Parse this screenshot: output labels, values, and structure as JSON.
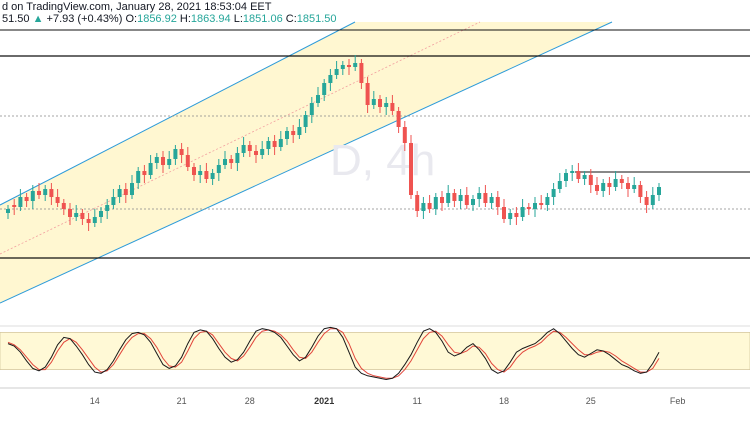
{
  "header": {
    "publish_text": "d on TradingView.com, January 28, 2021 18:53:04 EET",
    "ohlc_prefix": "51.50",
    "change": "+7.93 (+0.43%)",
    "open_label": "O:",
    "open": "1856.92",
    "high_label": "H:",
    "high": "1863.94",
    "low_label": "L:",
    "low": "1851.06",
    "close_label": "C:",
    "close": "1851.50"
  },
  "watermark": "D, 4h",
  "colors": {
    "up": "#26a69a",
    "down": "#ef5350",
    "channel_line": "#2d9bd9",
    "channel_fill": "#fff6cc",
    "stoch_k": "#1a1a1a",
    "stoch_d": "#e2463b",
    "stoch_band": "#fff9d6"
  },
  "x_axis": {
    "ticks": [
      {
        "label": "14",
        "idx": 14,
        "bold": false
      },
      {
        "label": "21",
        "idx": 28,
        "bold": false
      },
      {
        "label": "28",
        "idx": 39,
        "bold": false
      },
      {
        "label": "2021",
        "idx": 51,
        "bold": true
      },
      {
        "label": "11",
        "idx": 66,
        "bold": false
      },
      {
        "label": "18",
        "idx": 80,
        "bold": false
      },
      {
        "label": "25",
        "idx": 94,
        "bold": false
      },
      {
        "label": "Feb",
        "idx": 108,
        "bold": false
      }
    ]
  },
  "chart_data": {
    "type": "candlestick",
    "candles": [
      [
        1,
        3
      ],
      [
        5,
        4
      ],
      [
        4,
        9
      ],
      [
        9,
        7
      ],
      [
        7,
        12
      ],
      [
        12,
        10
      ],
      [
        10,
        13
      ],
      [
        13,
        9
      ],
      [
        9,
        6
      ],
      [
        6,
        3
      ],
      [
        3,
        -1
      ],
      [
        -1,
        1
      ],
      [
        1,
        -2
      ],
      [
        -2,
        -4
      ],
      [
        -4,
        -1
      ],
      [
        -1,
        2
      ],
      [
        2,
        5
      ],
      [
        5,
        9
      ],
      [
        9,
        13
      ],
      [
        13,
        10
      ],
      [
        10,
        16
      ],
      [
        16,
        22
      ],
      [
        22,
        20
      ],
      [
        20,
        26
      ],
      [
        26,
        29
      ],
      [
        29,
        25
      ],
      [
        25,
        28
      ],
      [
        28,
        33
      ],
      [
        33,
        30
      ],
      [
        30,
        24
      ],
      [
        24,
        20
      ],
      [
        20,
        22
      ],
      [
        22,
        18
      ],
      [
        18,
        21
      ],
      [
        21,
        25
      ],
      [
        25,
        28
      ],
      [
        28,
        26
      ],
      [
        26,
        31
      ],
      [
        31,
        35
      ],
      [
        35,
        32
      ],
      [
        32,
        30
      ],
      [
        30,
        33
      ],
      [
        33,
        37
      ],
      [
        37,
        34
      ],
      [
        34,
        38
      ],
      [
        38,
        42
      ],
      [
        42,
        40
      ],
      [
        40,
        44
      ],
      [
        44,
        50
      ],
      [
        50,
        56
      ],
      [
        56,
        60
      ],
      [
        60,
        66
      ],
      [
        66,
        70
      ],
      [
        70,
        73
      ],
      [
        73,
        75
      ],
      [
        75,
        74
      ],
      [
        74,
        76
      ],
      [
        76,
        66
      ],
      [
        66,
        55
      ],
      [
        55,
        58
      ],
      [
        58,
        54
      ],
      [
        54,
        56
      ],
      [
        56,
        52
      ],
      [
        52,
        44
      ],
      [
        44,
        36
      ],
      [
        36,
        10
      ],
      [
        10,
        2
      ],
      [
        2,
        6
      ],
      [
        6,
        3
      ],
      [
        3,
        9
      ],
      [
        9,
        6
      ],
      [
        6,
        11
      ],
      [
        11,
        7
      ],
      [
        7,
        10
      ],
      [
        10,
        5
      ],
      [
        5,
        8
      ],
      [
        8,
        11
      ],
      [
        11,
        6
      ],
      [
        6,
        9
      ],
      [
        9,
        4
      ],
      [
        4,
        -2
      ],
      [
        -2,
        1
      ],
      [
        1,
        -1
      ],
      [
        -1,
        4
      ],
      [
        4,
        3
      ],
      [
        3,
        6
      ],
      [
        6,
        5
      ],
      [
        5,
        9
      ],
      [
        9,
        13
      ],
      [
        13,
        17
      ],
      [
        17,
        21
      ],
      [
        21,
        22
      ],
      [
        22,
        18
      ],
      [
        18,
        20
      ],
      [
        20,
        15
      ],
      [
        15,
        12
      ],
      [
        12,
        16
      ],
      [
        16,
        14
      ],
      [
        14,
        18
      ],
      [
        18,
        16
      ],
      [
        16,
        13
      ],
      [
        13,
        15
      ],
      [
        15,
        9
      ],
      [
        9,
        5
      ],
      [
        5,
        10
      ],
      [
        10,
        14
      ]
    ],
    "stoch_k": [
      62,
      58,
      48,
      34,
      22,
      18,
      24,
      40,
      60,
      72,
      70,
      58,
      44,
      28,
      16,
      14,
      20,
      34,
      52,
      68,
      78,
      80,
      76,
      64,
      46,
      28,
      22,
      26,
      40,
      62,
      80,
      84,
      82,
      70,
      54,
      40,
      32,
      36,
      48,
      66,
      82,
      86,
      84,
      80,
      72,
      58,
      44,
      34,
      40,
      56,
      74,
      86,
      88,
      86,
      72,
      48,
      24,
      14,
      10,
      8,
      6,
      4,
      6,
      14,
      28,
      44,
      64,
      82,
      86,
      80,
      66,
      48,
      42,
      46,
      56,
      62,
      52,
      38,
      20,
      14,
      18,
      32,
      48,
      54,
      58,
      62,
      70,
      80,
      86,
      78,
      66,
      54,
      44,
      40,
      46,
      52,
      50,
      44,
      36,
      28,
      24,
      18,
      14,
      16,
      30,
      48
    ],
    "stoch_d": [
      64,
      60,
      52,
      40,
      28,
      20,
      20,
      32,
      50,
      64,
      70,
      64,
      52,
      38,
      24,
      16,
      18,
      28,
      44,
      60,
      72,
      78,
      78,
      70,
      56,
      38,
      26,
      24,
      32,
      50,
      70,
      80,
      82,
      76,
      62,
      48,
      38,
      34,
      42,
      56,
      72,
      82,
      84,
      82,
      76,
      66,
      52,
      40,
      38,
      48,
      64,
      78,
      86,
      86,
      80,
      62,
      38,
      22,
      14,
      10,
      8,
      6,
      6,
      10,
      20,
      34,
      52,
      70,
      80,
      82,
      74,
      60,
      48,
      46,
      50,
      58,
      56,
      46,
      30,
      20,
      16,
      24,
      38,
      48,
      54,
      58,
      64,
      74,
      82,
      80,
      72,
      62,
      52,
      44,
      44,
      48,
      50,
      48,
      42,
      34,
      28,
      22,
      16,
      16,
      22,
      38
    ],
    "stoch_band": [
      20,
      80
    ],
    "x_start_date": "2020-12-05"
  }
}
